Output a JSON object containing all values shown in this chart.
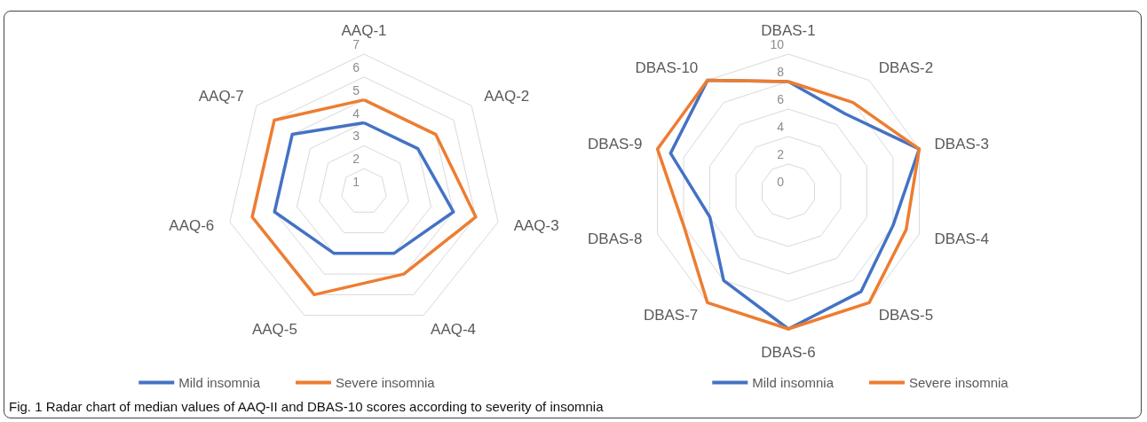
{
  "chart_data": [
    {
      "type": "radar",
      "categories": [
        "AAQ-1",
        "AAQ-2",
        "AAQ-3",
        "AAQ-4",
        "AAQ-5",
        "AAQ-6",
        "AAQ-7"
      ],
      "series": [
        {
          "name": "Mild insomnia",
          "color": "#4472c4",
          "values": [
            4,
            4,
            5,
            4,
            4,
            5,
            5
          ]
        },
        {
          "name": "Severe insomnia",
          "color": "#ed7d31",
          "values": [
            5,
            5,
            6,
            5,
            6,
            6,
            6
          ]
        }
      ],
      "ylim": [
        1,
        7
      ],
      "yticks": [
        1,
        2,
        3,
        4,
        5,
        6,
        7
      ],
      "legend": "bottom",
      "marker": "none",
      "line_style": "solid",
      "annotations": [
        "Fig. 1  Radar chart of median values of AAQ-II and DBAS-10 scores according to severity of insomnia"
      ]
    },
    {
      "type": "radar",
      "categories": [
        "DBAS-1",
        "DBAS-2",
        "DBAS-3",
        "DBAS-4",
        "DBAS-5",
        "DBAS-6",
        "DBAS-7",
        "DBAS-8",
        "DBAS-9",
        "DBAS-10"
      ],
      "series": [
        {
          "name": "Mild insomnia",
          "color": "#4472c4",
          "values": [
            8,
            7,
            10,
            8,
            9,
            10,
            8,
            6,
            9,
            10
          ]
        },
        {
          "name": "Severe insomnia",
          "color": "#ed7d31",
          "values": [
            8,
            8,
            10,
            9,
            10,
            10,
            10,
            8,
            10,
            10
          ]
        }
      ],
      "ylim": [
        0,
        10
      ],
      "yticks": [
        0,
        2,
        4,
        6,
        8,
        10
      ],
      "legend": "bottom",
      "marker": "none",
      "line_style": "solid"
    }
  ]
}
